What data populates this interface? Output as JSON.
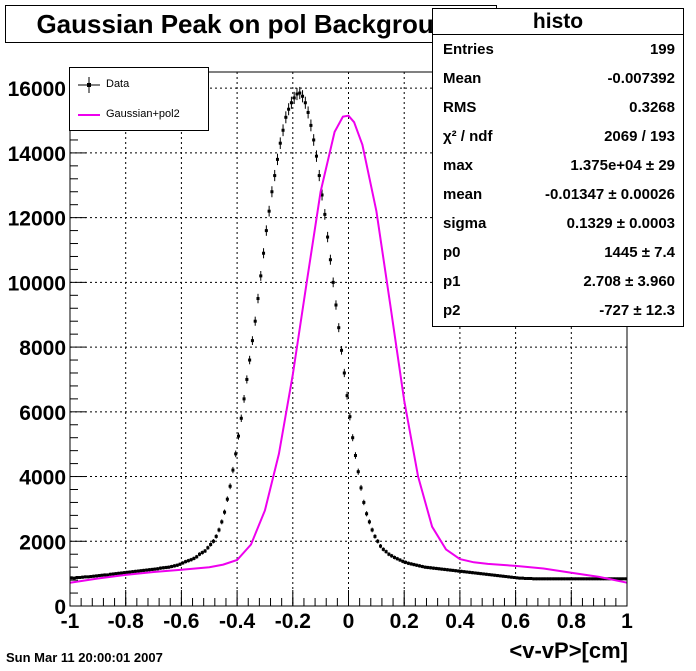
{
  "title": "Gaussian Peak on pol Background",
  "stats": {
    "name": "histo",
    "rows": [
      {
        "label": "Entries",
        "value": "199"
      },
      {
        "label": "Mean",
        "value": "-0.007392"
      },
      {
        "label": "RMS",
        "value": "0.3268"
      },
      {
        "label": "χ² / ndf",
        "value": "2069 / 193"
      },
      {
        "label": "max",
        "value": "1.375e+04 ± 29"
      },
      {
        "label": "mean",
        "value": "-0.01347 ± 0.00026"
      },
      {
        "label": "sigma",
        "value": "0.1329 ± 0.0003"
      },
      {
        "label": "p0",
        "value": "1445 ± 7.4"
      },
      {
        "label": "p1",
        "value": "2.708 ± 3.960"
      },
      {
        "label": "p2",
        "value": "-727 ± 12.3"
      }
    ]
  },
  "legend": {
    "data_label": "Data",
    "fit_label": "Gaussian+pol2"
  },
  "footer": "Sun Mar 11 20:00:01 2007",
  "colors": {
    "fit": "#ee00ee",
    "data": "#000000",
    "grid": "#000000"
  },
  "chart_data": {
    "type": "scatter",
    "title": "Gaussian Peak on pol Background",
    "xlabel": "<v-vP>[cm]",
    "ylabel": "",
    "xlim": [
      -1,
      1
    ],
    "ylim": [
      0,
      16500
    ],
    "xticks": [
      "-1",
      "-0.8",
      "-0.6",
      "-0.4",
      "-0.2",
      "0",
      "0.2",
      "0.4",
      "0.6",
      "0.8",
      "1"
    ],
    "yticks": [
      "0",
      "2000",
      "4000",
      "6000",
      "8000",
      "10000",
      "12000",
      "14000",
      "16000"
    ],
    "grid": true,
    "legend_position": "top-left",
    "series": [
      {
        "name": "Data",
        "style": "points-with-error-bars",
        "x_start": -0.995,
        "x_step": 0.01,
        "values": [
          870,
          860,
          880,
          880,
          890,
          900,
          900,
          910,
          920,
          930,
          940,
          950,
          960,
          960,
          980,
          990,
          1000,
          1010,
          1020,
          1030,
          1040,
          1050,
          1060,
          1070,
          1080,
          1090,
          1100,
          1110,
          1120,
          1130,
          1140,
          1150,
          1170,
          1180,
          1190,
          1200,
          1220,
          1240,
          1260,
          1290,
          1330,
          1370,
          1400,
          1430,
          1470,
          1520,
          1600,
          1650,
          1700,
          1800,
          1900,
          2000,
          2150,
          2350,
          2600,
          2900,
          3300,
          3700,
          4200,
          4700,
          5250,
          5800,
          6400,
          7000,
          7600,
          8200,
          8800,
          9500,
          10200,
          10900,
          11600,
          12200,
          12800,
          13300,
          13800,
          14300,
          14700,
          15100,
          15350,
          15550,
          15700,
          15820,
          15850,
          15750,
          15550,
          15250,
          14850,
          14400,
          13900,
          13300,
          12700,
          12100,
          11400,
          10700,
          10000,
          9300,
          8600,
          7900,
          7200,
          6500,
          5850,
          5200,
          4650,
          4150,
          3650,
          3200,
          2850,
          2600,
          2350,
          2150,
          2000,
          1850,
          1750,
          1680,
          1600,
          1550,
          1500,
          1460,
          1420,
          1380,
          1350,
          1320,
          1300,
          1280,
          1260,
          1240,
          1220,
          1200,
          1190,
          1180,
          1170,
          1160,
          1150,
          1140,
          1130,
          1120,
          1110,
          1100,
          1090,
          1080,
          1070,
          1060,
          1050,
          1040,
          1030,
          1020,
          1010,
          1000,
          990,
          980,
          970,
          960,
          950,
          940,
          930,
          920,
          910,
          900,
          890,
          880,
          870,
          860,
          860,
          850,
          850,
          850,
          840,
          840,
          840,
          840,
          840,
          840,
          840,
          840,
          840,
          840,
          840,
          840,
          840,
          840,
          840,
          840,
          840,
          840,
          840,
          840,
          840,
          840,
          840,
          840,
          840,
          840,
          840,
          840,
          840,
          840,
          840,
          840,
          840,
          840
        ]
      },
      {
        "name": "Gaussian+pol2",
        "style": "line",
        "x": [
          -1.0,
          -0.9,
          -0.8,
          -0.7,
          -0.6,
          -0.5,
          -0.45,
          -0.4,
          -0.35,
          -0.3,
          -0.25,
          -0.2,
          -0.15,
          -0.1,
          -0.05,
          -0.02,
          0.0,
          0.02,
          0.05,
          0.1,
          0.15,
          0.2,
          0.25,
          0.3,
          0.35,
          0.4,
          0.45,
          0.5,
          0.6,
          0.7,
          0.8,
          0.9,
          1.0
        ],
        "y": [
          720,
          850,
          960,
          1050,
          1120,
          1200,
          1280,
          1420,
          1900,
          2950,
          4700,
          7150,
          10000,
          12800,
          14650,
          15120,
          15150,
          14950,
          14250,
          12200,
          9300,
          6350,
          4000,
          2450,
          1750,
          1450,
          1350,
          1300,
          1240,
          1160,
          1030,
          900,
          720
        ]
      }
    ]
  }
}
